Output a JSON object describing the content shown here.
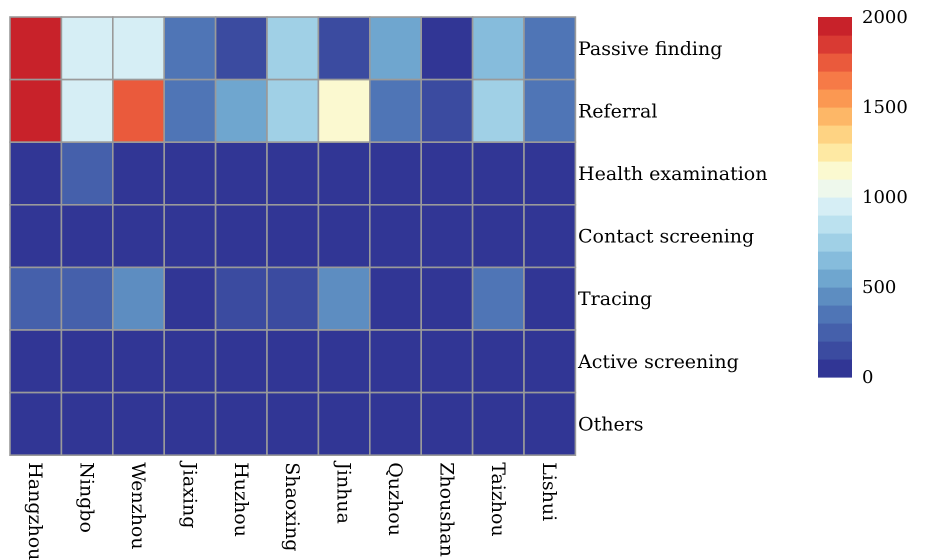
{
  "chart_data": {
    "type": "heatmap",
    "title": "",
    "xlabel": "",
    "ylabel": "",
    "columns": [
      "Hangzhou",
      "Ningbo",
      "Wenzhou",
      "Jiaxing",
      "Huzhou",
      "Shaoxing",
      "Jinhua",
      "Quzhou",
      "Zhoushan",
      "Taizhou",
      "Lishui"
    ],
    "rows": [
      "Passive finding",
      "Referral",
      "Health examination",
      "Contact screening",
      "Tracing",
      "Active screening",
      "Others"
    ],
    "values": [
      [
        1900,
        950,
        960,
        350,
        150,
        750,
        150,
        500,
        40,
        650,
        300
      ],
      [
        1900,
        950,
        1700,
        300,
        550,
        750,
        1150,
        300,
        150,
        750,
        300
      ],
      [
        30,
        250,
        30,
        20,
        30,
        20,
        30,
        20,
        20,
        30,
        20
      ],
      [
        20,
        20,
        20,
        20,
        20,
        20,
        20,
        20,
        20,
        20,
        20
      ],
      [
        200,
        200,
        400,
        20,
        150,
        150,
        400,
        20,
        20,
        300,
        20
      ],
      [
        20,
        20,
        20,
        20,
        20,
        20,
        20,
        20,
        20,
        20,
        20
      ],
      [
        20,
        20,
        20,
        20,
        20,
        20,
        20,
        20,
        20,
        20,
        20
      ]
    ],
    "colorbar": {
      "min": 0,
      "max": 2000,
      "ticks": [
        0,
        500,
        1000,
        1500,
        2000
      ],
      "colors": [
        "#313695",
        "#3b4ba0",
        "#4560ab",
        "#4f75b6",
        "#5d8dc1",
        "#6fa6cf",
        "#86bcdc",
        "#a0d0e6",
        "#bbe1ef",
        "#d6eef5",
        "#eef8ec",
        "#fbf9d0",
        "#fee9a3",
        "#fed383",
        "#fdb767",
        "#fb9852",
        "#f67a47",
        "#ea5a3c",
        "#d93a33",
        "#c8222a"
      ]
    },
    "grid": true,
    "legend": "right"
  }
}
